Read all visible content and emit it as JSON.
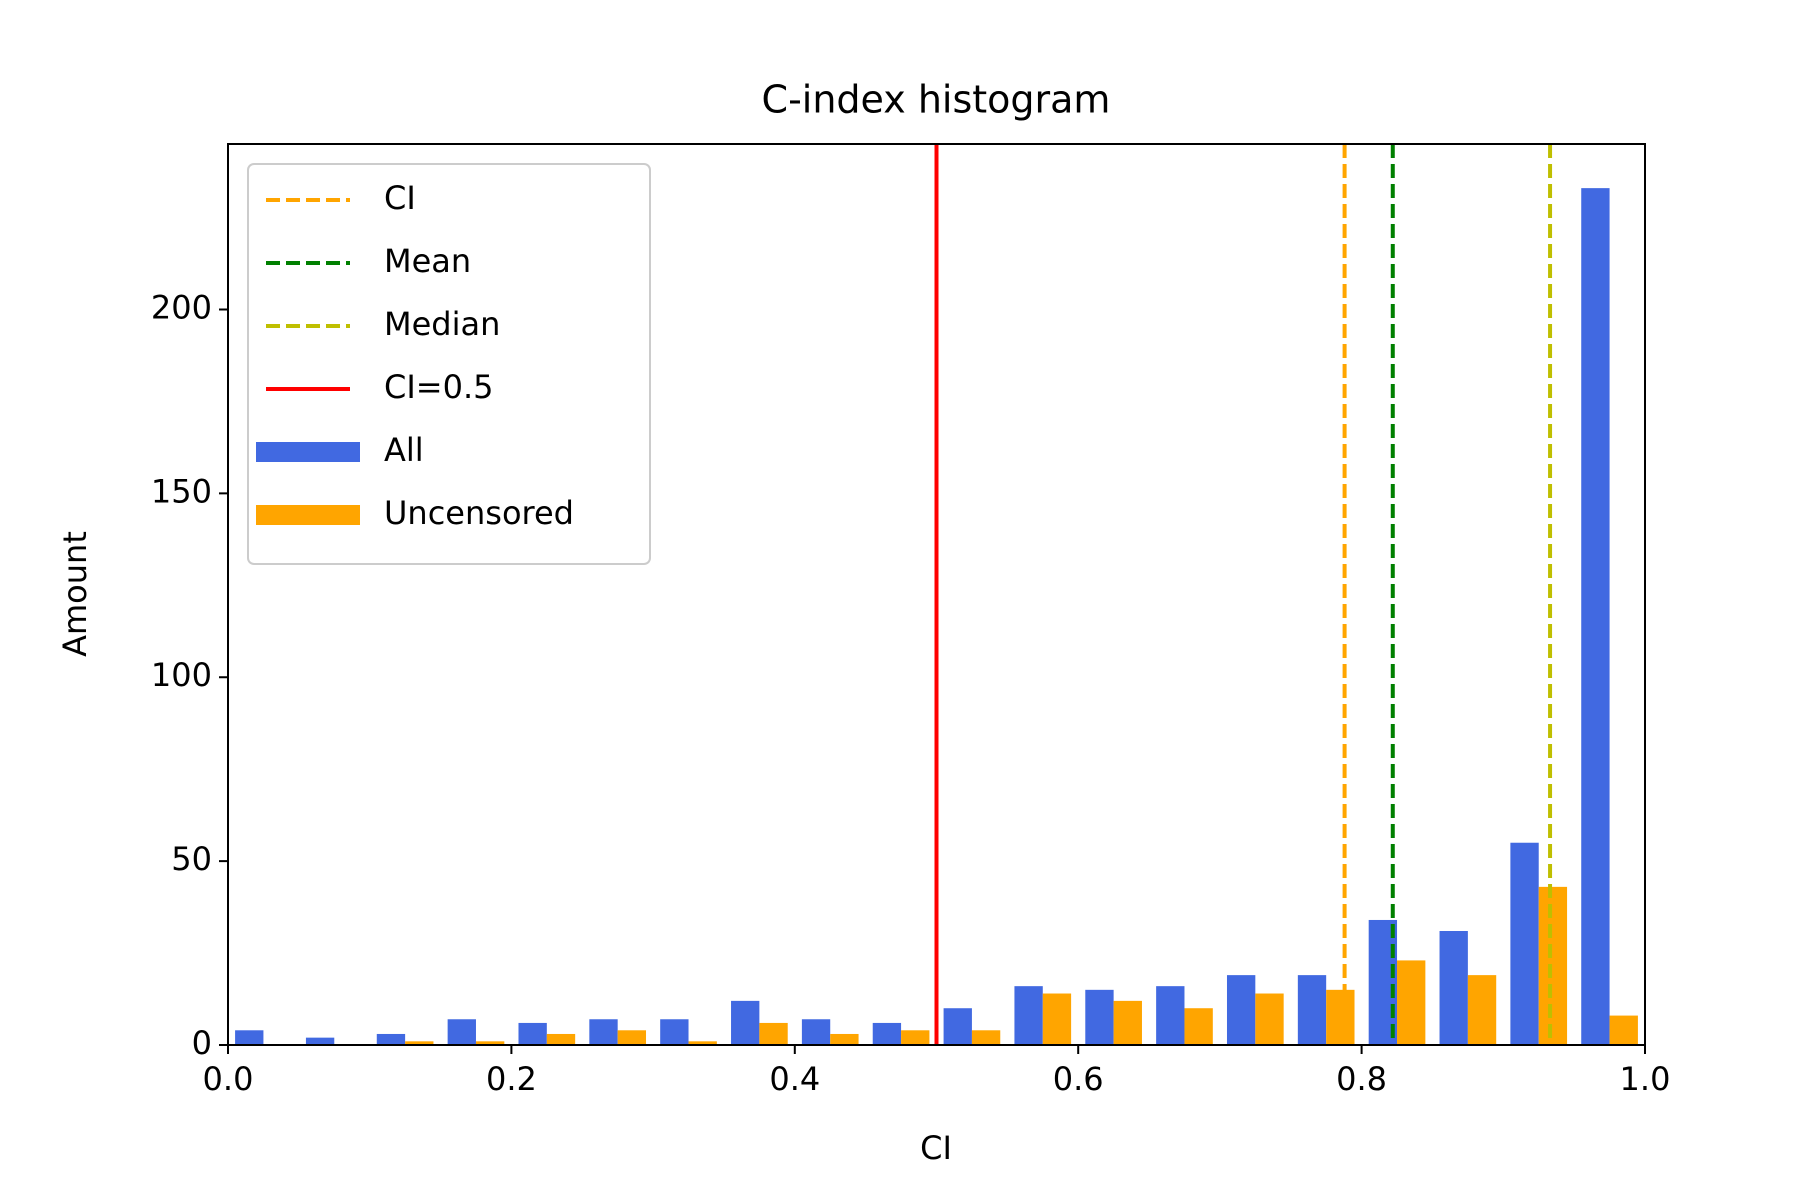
{
  "chart_data": {
    "type": "histogram",
    "title": "C-index histogram",
    "xlabel": "CI",
    "ylabel": "Amount",
    "bins": [
      0.0,
      0.05,
      0.1,
      0.15,
      0.2,
      0.25,
      0.3,
      0.35,
      0.4,
      0.45,
      0.5,
      0.55,
      0.6,
      0.65,
      0.7,
      0.75,
      0.8,
      0.85,
      0.9,
      0.95,
      1.0
    ],
    "series": [
      {
        "name": "All",
        "color": "#4169e1",
        "values": [
          4,
          2,
          3,
          7,
          6,
          7,
          7,
          12,
          7,
          6,
          10,
          16,
          15,
          16,
          19,
          19,
          34,
          31,
          55,
          233
        ]
      },
      {
        "name": "Uncensored",
        "color": "#ffa500",
        "values": [
          0,
          0,
          1,
          1,
          3,
          4,
          1,
          6,
          3,
          4,
          4,
          14,
          12,
          10,
          14,
          15,
          23,
          19,
          43,
          8
        ]
      }
    ],
    "vlines": [
      {
        "name": "CI",
        "value": 0.788,
        "color": "#ffa500",
        "style": "dashed"
      },
      {
        "name": "Mean",
        "value": 0.822,
        "color": "#008000",
        "style": "dashed"
      },
      {
        "name": "Median",
        "value": 0.933,
        "color": "#bfbf00",
        "style": "dashed"
      },
      {
        "name": "CI=0.5",
        "value": 0.5,
        "color": "#ff0000",
        "style": "solid"
      }
    ],
    "xlim": [
      0,
      1
    ],
    "ylim": [
      0,
      245
    ],
    "xticks": [
      {
        "value": 0,
        "label": "0.0"
      },
      0.2,
      0.4,
      0.6,
      0.8,
      {
        "value": 1,
        "label": "1.0"
      }
    ],
    "yticks": [
      0,
      50,
      100,
      150,
      200
    ],
    "legend": "upper left"
  }
}
